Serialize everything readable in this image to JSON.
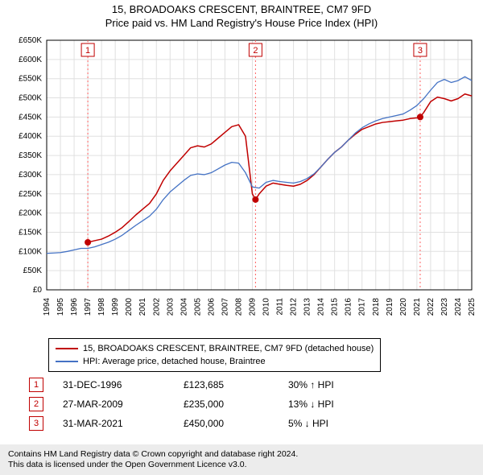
{
  "title_line1": "15, BROADOAKS CRESCENT, BRAINTREE, CM7 9FD",
  "title_line2": "Price paid vs. HM Land Registry's House Price Index (HPI)",
  "chart": {
    "type": "line",
    "background_color": "#ffffff",
    "grid_color": "#e0e0e0",
    "axis_color": "#000000",
    "title_fontsize": 13,
    "axis_label_fontsize": 10,
    "x": {
      "min": 1994,
      "max": 2025,
      "step": 1,
      "ticks": [
        1994,
        1995,
        1996,
        1997,
        1998,
        1999,
        2000,
        2001,
        2002,
        2003,
        2004,
        2005,
        2006,
        2007,
        2008,
        2009,
        2010,
        2011,
        2012,
        2013,
        2014,
        2015,
        2016,
        2017,
        2018,
        2019,
        2020,
        2021,
        2022,
        2023,
        2024,
        2025
      ]
    },
    "y": {
      "min": 0,
      "max": 650000,
      "step": 50000,
      "prefix": "£",
      "suffix": "K",
      "ticks": [
        0,
        50000,
        100000,
        150000,
        200000,
        250000,
        300000,
        350000,
        400000,
        450000,
        500000,
        550000,
        600000,
        650000
      ]
    },
    "series": [
      {
        "name": "15, BROADOAKS CRESCENT, BRAINTREE, CM7 9FD (detached house)",
        "color": "#c00000",
        "line_width": 1.5,
        "data": [
          [
            1997.0,
            123685
          ],
          [
            1997.5,
            128000
          ],
          [
            1998.0,
            132000
          ],
          [
            1998.5,
            140000
          ],
          [
            1999.0,
            150000
          ],
          [
            1999.5,
            162000
          ],
          [
            2000.0,
            178000
          ],
          [
            2000.5,
            195000
          ],
          [
            2001.0,
            210000
          ],
          [
            2001.5,
            225000
          ],
          [
            2002.0,
            250000
          ],
          [
            2002.5,
            285000
          ],
          [
            2003.0,
            310000
          ],
          [
            2003.5,
            330000
          ],
          [
            2004.0,
            350000
          ],
          [
            2004.5,
            370000
          ],
          [
            2005.0,
            375000
          ],
          [
            2005.5,
            372000
          ],
          [
            2006.0,
            380000
          ],
          [
            2006.5,
            395000
          ],
          [
            2007.0,
            410000
          ],
          [
            2007.5,
            425000
          ],
          [
            2008.0,
            430000
          ],
          [
            2008.5,
            400000
          ],
          [
            2009.0,
            250000
          ],
          [
            2009.23,
            235000
          ],
          [
            2009.5,
            250000
          ],
          [
            2010.0,
            270000
          ],
          [
            2010.5,
            278000
          ],
          [
            2011.0,
            275000
          ],
          [
            2011.5,
            272000
          ],
          [
            2012.0,
            270000
          ],
          [
            2012.5,
            275000
          ],
          [
            2013.0,
            285000
          ],
          [
            2013.5,
            300000
          ],
          [
            2014.0,
            320000
          ],
          [
            2014.5,
            340000
          ],
          [
            2015.0,
            358000
          ],
          [
            2015.5,
            372000
          ],
          [
            2016.0,
            390000
          ],
          [
            2016.5,
            405000
          ],
          [
            2017.0,
            418000
          ],
          [
            2017.5,
            425000
          ],
          [
            2018.0,
            432000
          ],
          [
            2018.5,
            436000
          ],
          [
            2019.0,
            438000
          ],
          [
            2019.5,
            440000
          ],
          [
            2020.0,
            442000
          ],
          [
            2020.5,
            446000
          ],
          [
            2021.0,
            448000
          ],
          [
            2021.24,
            450000
          ],
          [
            2021.5,
            462000
          ],
          [
            2022.0,
            490000
          ],
          [
            2022.5,
            502000
          ],
          [
            2023.0,
            498000
          ],
          [
            2023.5,
            492000
          ],
          [
            2024.0,
            498000
          ],
          [
            2024.5,
            510000
          ],
          [
            2025.0,
            505000
          ]
        ]
      },
      {
        "name": "HPI: Average price, detached house, Braintree",
        "color": "#4472c4",
        "line_width": 1.3,
        "data": [
          [
            1994.0,
            95000
          ],
          [
            1994.5,
            96000
          ],
          [
            1995.0,
            97000
          ],
          [
            1995.5,
            100000
          ],
          [
            1996.0,
            104000
          ],
          [
            1996.5,
            108000
          ],
          [
            1997.0,
            108000
          ],
          [
            1997.5,
            112000
          ],
          [
            1998.0,
            118000
          ],
          [
            1998.5,
            124000
          ],
          [
            1999.0,
            132000
          ],
          [
            1999.5,
            142000
          ],
          [
            2000.0,
            155000
          ],
          [
            2000.5,
            168000
          ],
          [
            2001.0,
            180000
          ],
          [
            2001.5,
            192000
          ],
          [
            2002.0,
            210000
          ],
          [
            2002.5,
            235000
          ],
          [
            2003.0,
            255000
          ],
          [
            2003.5,
            270000
          ],
          [
            2004.0,
            285000
          ],
          [
            2004.5,
            298000
          ],
          [
            2005.0,
            302000
          ],
          [
            2005.5,
            300000
          ],
          [
            2006.0,
            305000
          ],
          [
            2006.5,
            315000
          ],
          [
            2007.0,
            325000
          ],
          [
            2007.5,
            332000
          ],
          [
            2008.0,
            330000
          ],
          [
            2008.5,
            305000
          ],
          [
            2009.0,
            268000
          ],
          [
            2009.5,
            265000
          ],
          [
            2010.0,
            280000
          ],
          [
            2010.5,
            285000
          ],
          [
            2011.0,
            282000
          ],
          [
            2011.5,
            280000
          ],
          [
            2012.0,
            278000
          ],
          [
            2012.5,
            282000
          ],
          [
            2013.0,
            290000
          ],
          [
            2013.5,
            302000
          ],
          [
            2014.0,
            320000
          ],
          [
            2014.5,
            340000
          ],
          [
            2015.0,
            358000
          ],
          [
            2015.5,
            372000
          ],
          [
            2016.0,
            390000
          ],
          [
            2016.5,
            408000
          ],
          [
            2017.0,
            422000
          ],
          [
            2017.5,
            432000
          ],
          [
            2018.0,
            440000
          ],
          [
            2018.5,
            446000
          ],
          [
            2019.0,
            450000
          ],
          [
            2019.5,
            454000
          ],
          [
            2020.0,
            458000
          ],
          [
            2020.5,
            468000
          ],
          [
            2021.0,
            480000
          ],
          [
            2021.5,
            498000
          ],
          [
            2022.0,
            520000
          ],
          [
            2022.5,
            540000
          ],
          [
            2023.0,
            548000
          ],
          [
            2023.5,
            540000
          ],
          [
            2024.0,
            545000
          ],
          [
            2024.5,
            555000
          ],
          [
            2025.0,
            545000
          ]
        ]
      }
    ],
    "sales_markers": [
      {
        "n": "1",
        "x": 1997.0,
        "y": 123685,
        "box_color": "#c00000"
      },
      {
        "n": "2",
        "x": 2009.23,
        "y": 235000,
        "box_color": "#c00000"
      },
      {
        "n": "3",
        "x": 2021.24,
        "y": 450000,
        "box_color": "#c00000"
      }
    ],
    "marker_dot_color": "#c00000",
    "marker_dot_radius": 4,
    "marker_line_color": "#ff6060",
    "marker_line_dash": "2,3",
    "marker_box_bg": "#ffffff"
  },
  "legend": {
    "items": [
      {
        "color": "#c00000",
        "label": "15, BROADOAKS CRESCENT, BRAINTREE, CM7 9FD (detached house)"
      },
      {
        "color": "#4472c4",
        "label": "HPI: Average price, detached house, Braintree"
      }
    ]
  },
  "sales": [
    {
      "n": "1",
      "date": "31-DEC-1996",
      "price": "£123,685",
      "diff": "30% ↑ HPI"
    },
    {
      "n": "2",
      "date": "27-MAR-2009",
      "price": "£235,000",
      "diff": "13% ↓ HPI"
    },
    {
      "n": "3",
      "date": "31-MAR-2021",
      "price": "£450,000",
      "diff": "5% ↓ HPI"
    }
  ],
  "footer_line1": "Contains HM Land Registry data © Crown copyright and database right 2024.",
  "footer_line2": "This data is licensed under the Open Government Licence v3.0."
}
